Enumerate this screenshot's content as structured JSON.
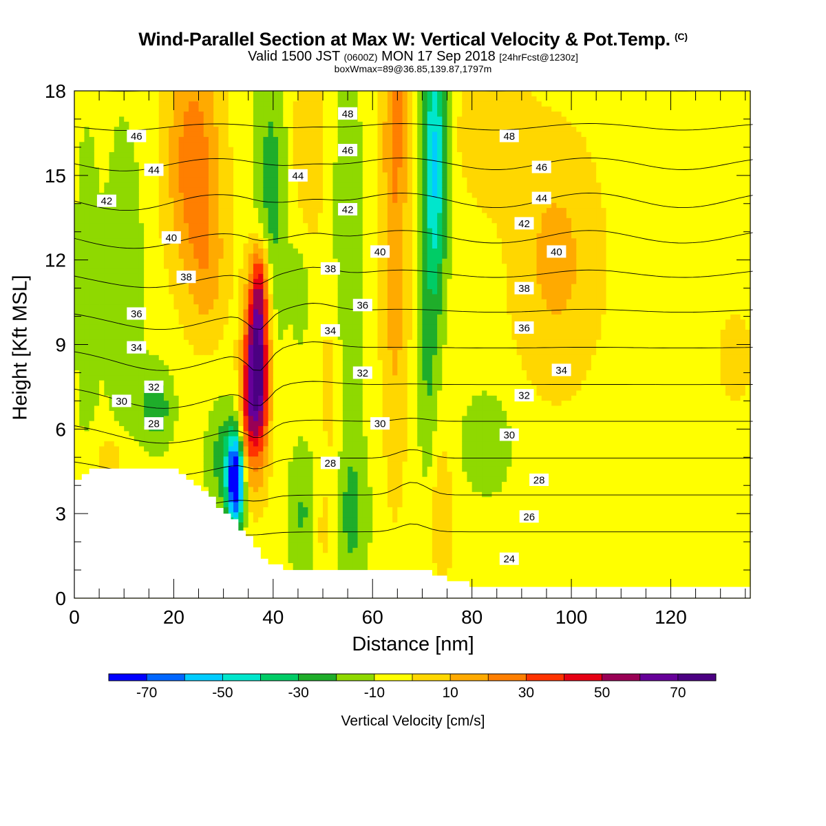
{
  "title": "Wind-Parallel Section at Max W: Vertical Velocity & Pot.Temp.",
  "title_mark": "(C)",
  "subtitle_main": "Valid 1500 JST",
  "subtitle_z": "(0600Z)",
  "subtitle_date": "MON 17 Sep 2018",
  "subtitle_fcst": "[24hrFcst@1230z]",
  "subtitle2": "boxWmax=89@36.85,139.87,1797m",
  "chart_data": {
    "type": "heatmap",
    "xlabel": "Distance [nm]",
    "ylabel": "Height [Kft MSL]",
    "xlim": [
      0,
      136
    ],
    "ylim": [
      0,
      18
    ],
    "xticks": [
      0,
      20,
      40,
      60,
      80,
      100,
      120
    ],
    "yticks": [
      0,
      3,
      6,
      9,
      12,
      15,
      18
    ],
    "colorbar": {
      "label": "Vertical Velocity [cm/s]",
      "levels": [
        -80,
        -70,
        -60,
        -50,
        -40,
        -30,
        -20,
        -10,
        0,
        10,
        20,
        30,
        40,
        50,
        60,
        70,
        80
      ],
      "tick_labels": [
        -70,
        -50,
        -30,
        -10,
        10,
        30,
        50,
        70
      ],
      "colors": [
        "#0000ff",
        "#0066ff",
        "#00ccff",
        "#00e6cc",
        "#00cc66",
        "#1fad2a",
        "#8fd900",
        "#ffff00",
        "#ffd700",
        "#ffaa00",
        "#ff7f00",
        "#ff3300",
        "#e60014",
        "#990055",
        "#660099",
        "#4b0082"
      ]
    },
    "terrain_kft": [
      [
        0,
        4.3
      ],
      [
        3,
        4.5
      ],
      [
        20,
        4.5
      ],
      [
        23,
        4.2
      ],
      [
        26,
        3.8
      ],
      [
        28,
        3.3
      ],
      [
        30,
        3.0
      ],
      [
        32,
        2.7
      ],
      [
        35,
        2.0
      ],
      [
        38,
        1.3
      ],
      [
        42,
        1.0
      ],
      [
        70,
        1.0
      ],
      [
        74,
        0.7
      ],
      [
        80,
        0.4
      ],
      [
        136,
        0.4
      ]
    ],
    "vertical_velocity_features": [
      {
        "x": 36.5,
        "z": 8.0,
        "w": 89
      },
      {
        "x": 32.5,
        "z": 4.2,
        "w": -70
      },
      {
        "x": 72,
        "z": 16.5,
        "w": -40
      },
      {
        "x": 64,
        "z": 16,
        "w": 25
      },
      {
        "x": 22,
        "z": 16,
        "w": 25
      },
      {
        "x": 97,
        "z": 13,
        "w": 12
      }
    ],
    "theta_contours_C": [
      24,
      26,
      28,
      30,
      32,
      34,
      36,
      38,
      40,
      42,
      44,
      46,
      48
    ],
    "theta_labels": [
      {
        "v": "24",
        "x": 87.5,
        "z": 1.4
      },
      {
        "v": "26",
        "x": 91.5,
        "z": 2.9
      },
      {
        "v": "28",
        "x": 93.5,
        "z": 4.2
      },
      {
        "v": "28",
        "x": 51.5,
        "z": 4.8
      },
      {
        "v": "28",
        "x": 16,
        "z": 6.2
      },
      {
        "v": "30",
        "x": 9.5,
        "z": 7.0
      },
      {
        "v": "30",
        "x": 61.5,
        "z": 6.2
      },
      {
        "v": "30",
        "x": 87.5,
        "z": 5.8
      },
      {
        "v": "32",
        "x": 16,
        "z": 7.5
      },
      {
        "v": "32",
        "x": 58,
        "z": 8.0
      },
      {
        "v": "32",
        "x": 90.5,
        "z": 7.2
      },
      {
        "v": "34",
        "x": 12.5,
        "z": 8.9
      },
      {
        "v": "34",
        "x": 51.5,
        "z": 9.5
      },
      {
        "v": "34",
        "x": 98,
        "z": 8.1
      },
      {
        "v": "36",
        "x": 12.5,
        "z": 10.1
      },
      {
        "v": "36",
        "x": 58,
        "z": 10.4
      },
      {
        "v": "36",
        "x": 90.5,
        "z": 9.6
      },
      {
        "v": "38",
        "x": 22.5,
        "z": 11.4
      },
      {
        "v": "38",
        "x": 51.5,
        "z": 11.7
      },
      {
        "v": "38",
        "x": 90.5,
        "z": 11.0
      },
      {
        "v": "40",
        "x": 19.5,
        "z": 12.8
      },
      {
        "v": "40",
        "x": 61.5,
        "z": 12.3
      },
      {
        "v": "40",
        "x": 97,
        "z": 12.3
      },
      {
        "v": "42",
        "x": 6.5,
        "z": 14.1
      },
      {
        "v": "42",
        "x": 55,
        "z": 13.8
      },
      {
        "v": "42",
        "x": 90.5,
        "z": 13.3
      },
      {
        "v": "44",
        "x": 16,
        "z": 15.2
      },
      {
        "v": "44",
        "x": 45,
        "z": 15.0
      },
      {
        "v": "44",
        "x": 94,
        "z": 14.2
      },
      {
        "v": "46",
        "x": 12.5,
        "z": 16.4
      },
      {
        "v": "46",
        "x": 55,
        "z": 15.9
      },
      {
        "v": "46",
        "x": 94,
        "z": 15.3
      },
      {
        "v": "48",
        "x": 55,
        "z": 17.2
      },
      {
        "v": "48",
        "x": 87.5,
        "z": 16.4
      }
    ]
  }
}
